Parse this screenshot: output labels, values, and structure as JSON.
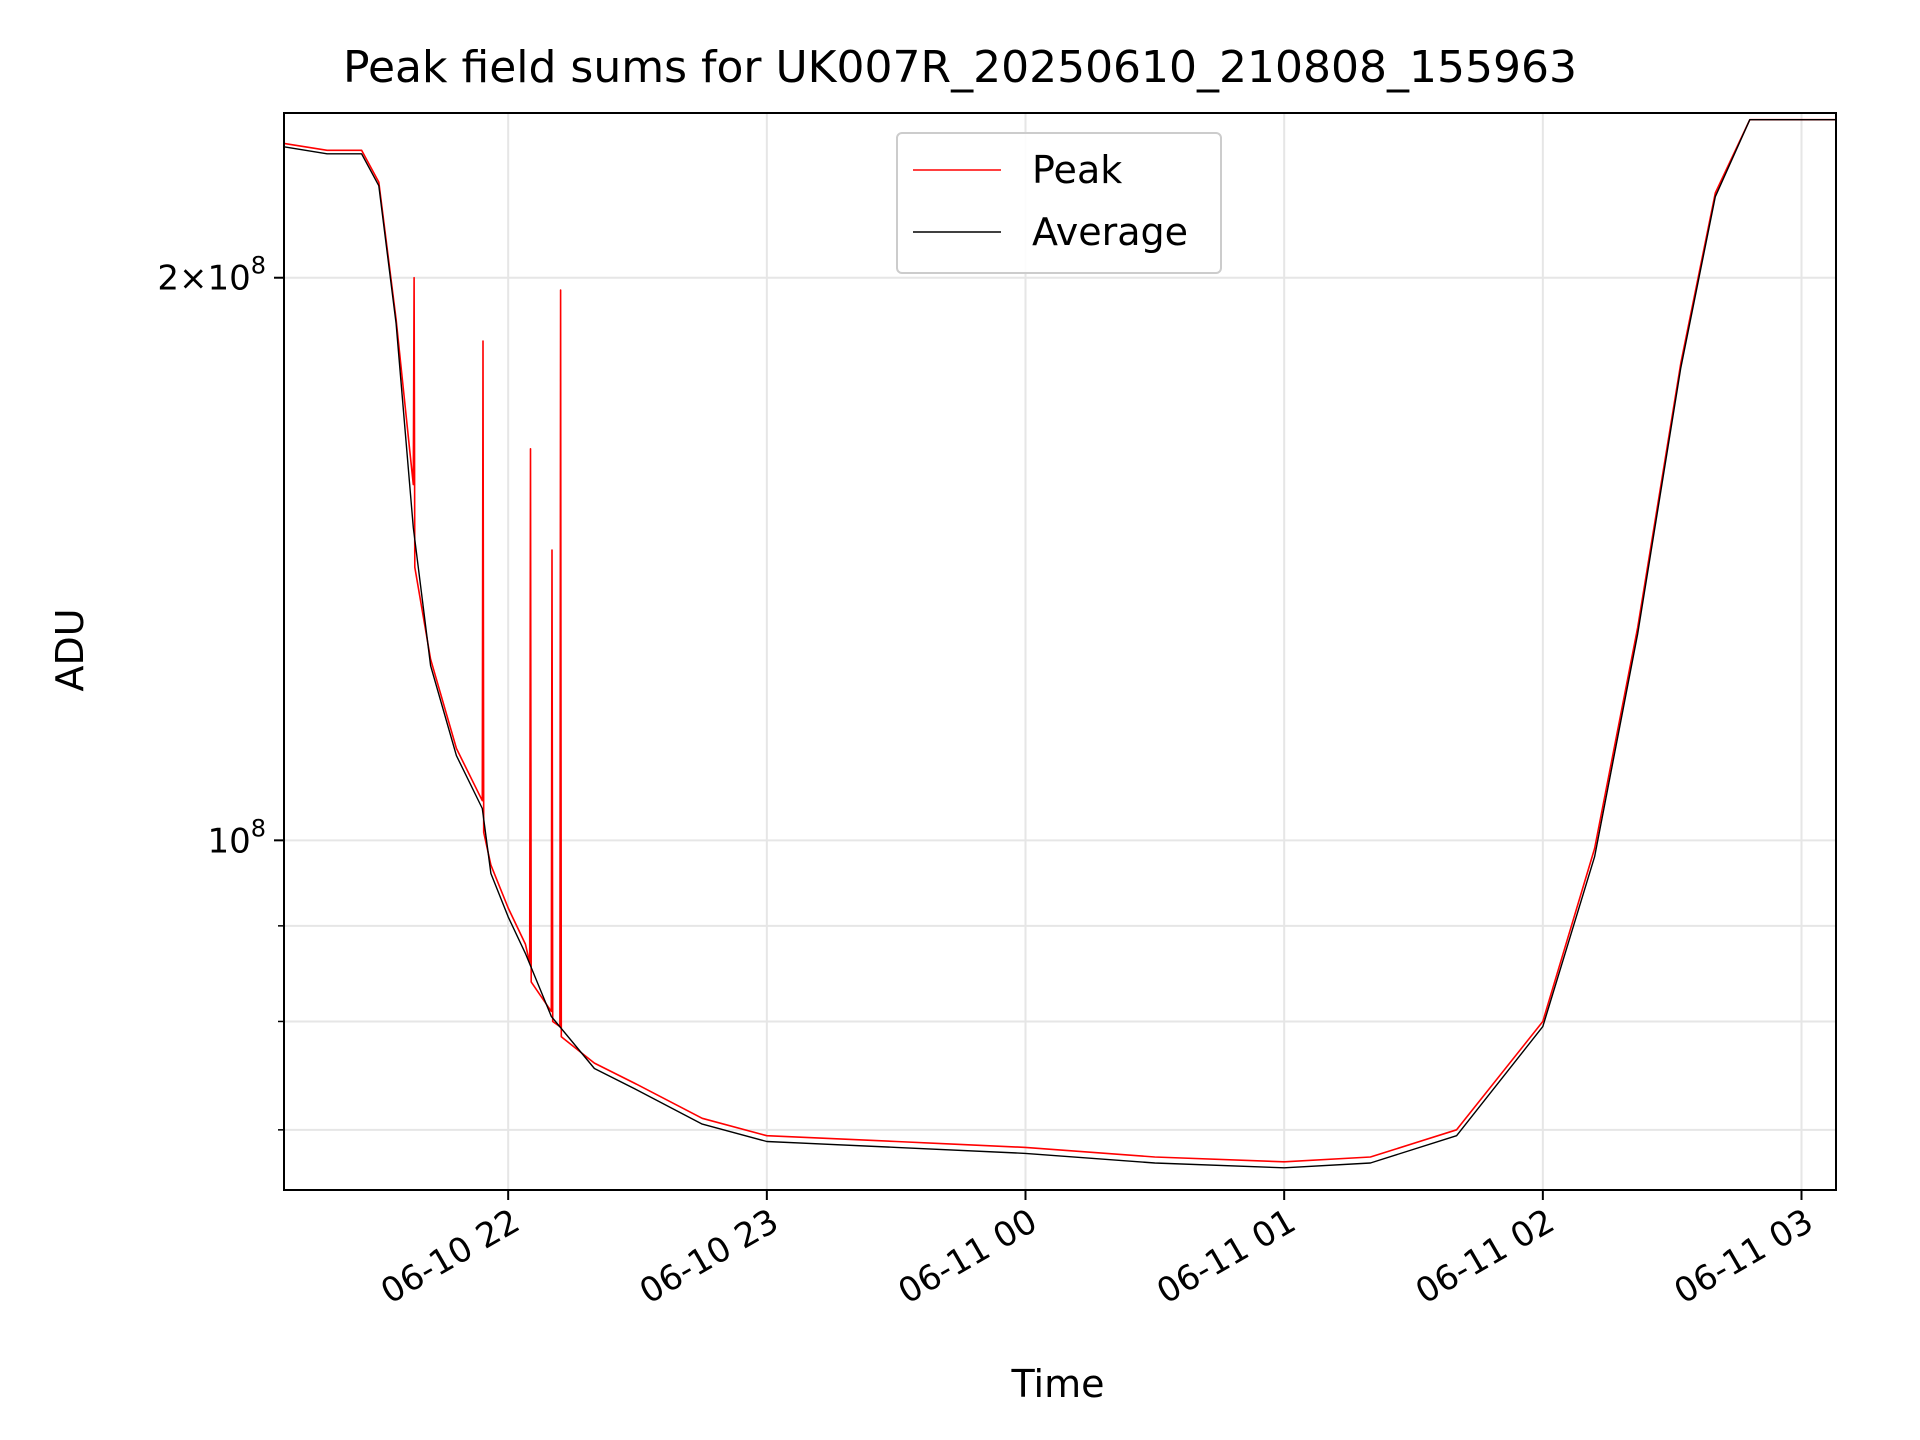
{
  "chart_data": {
    "type": "line",
    "title": "Peak field sums for UK007R_20250610_210808_155963",
    "xlabel": "Time",
    "ylabel": "ADU",
    "x_axis": {
      "type": "datetime",
      "range": [
        "2025-06-10 21:08",
        "2025-06-11 03:08"
      ],
      "ticks": [
        "06-10 22",
        "06-10 23",
        "06-11 00",
        "06-11 01",
        "06-11 02",
        "06-11 03"
      ]
    },
    "y_axis": {
      "scale": "log",
      "range": [
        65000000,
        245000000
      ],
      "major_ticks": [
        {
          "value": 100000000,
          "label": "10^8"
        },
        {
          "value": 200000000,
          "label": "2×10^8"
        }
      ],
      "minor_ticks": [
        70000000,
        80000000,
        90000000
      ]
    },
    "grid": true,
    "legend": {
      "position": "top-center"
    },
    "series": [
      {
        "name": "Peak",
        "color": "#ff0000",
        "points": [
          [
            "2025-06-10 21:08",
            236000000
          ],
          [
            "2025-06-10 21:18",
            234000000
          ],
          [
            "2025-06-10 21:26",
            234000000
          ],
          [
            "2025-06-10 21:30",
            225000000
          ],
          [
            "2025-06-10 21:34",
            190000000
          ],
          [
            "2025-06-10 21:38",
            155000000
          ],
          [
            "2025-06-10 21:38:10",
            200000000
          ],
          [
            "2025-06-10 21:38:20",
            140000000
          ],
          [
            "2025-06-10 21:42",
            125000000
          ],
          [
            "2025-06-10 21:48",
            112000000
          ],
          [
            "2025-06-10 21:54",
            105000000
          ],
          [
            "2025-06-10 21:54:10",
            185000000
          ],
          [
            "2025-06-10 21:54:20",
            101000000
          ],
          [
            "2025-06-10 21:56",
            97000000
          ],
          [
            "2025-06-10 22:00",
            92000000
          ],
          [
            "2025-06-10 22:04",
            88000000
          ],
          [
            "2025-06-10 22:05",
            86000000
          ],
          [
            "2025-06-10 22:05:10",
            162000000
          ],
          [
            "2025-06-10 22:05:20",
            84000000
          ],
          [
            "2025-06-10 22:10",
            81000000
          ],
          [
            "2025-06-10 22:10:10",
            143000000
          ],
          [
            "2025-06-10 22:10:20",
            80000000
          ],
          [
            "2025-06-10 22:12",
            79500000
          ],
          [
            "2025-06-10 22:12:10",
            197000000
          ],
          [
            "2025-06-10 22:12:20",
            78500000
          ],
          [
            "2025-06-10 22:20",
            76000000
          ],
          [
            "2025-06-10 22:30",
            74000000
          ],
          [
            "2025-06-10 22:45",
            71000000
          ],
          [
            "2025-06-10 23:00",
            69500000
          ],
          [
            "2025-06-10 23:30",
            69000000
          ],
          [
            "2025-06-11 00:00",
            68500000
          ],
          [
            "2025-06-11 00:30",
            67700000
          ],
          [
            "2025-06-11 01:00",
            67300000
          ],
          [
            "2025-06-11 01:20",
            67700000
          ],
          [
            "2025-06-11 01:40",
            70000000
          ],
          [
            "2025-06-11 02:00",
            80000000
          ],
          [
            "2025-06-11 02:12",
            99000000
          ],
          [
            "2025-06-11 02:22",
            130000000
          ],
          [
            "2025-06-11 02:32",
            180000000
          ],
          [
            "2025-06-11 02:40",
            222000000
          ],
          [
            "2025-06-11 02:48",
            243000000
          ],
          [
            "2025-06-11 03:08",
            243000000
          ]
        ]
      },
      {
        "name": "Average",
        "color": "#000000",
        "points": [
          [
            "2025-06-10 21:08",
            235000000
          ],
          [
            "2025-06-10 21:18",
            233000000
          ],
          [
            "2025-06-10 21:26",
            233000000
          ],
          [
            "2025-06-10 21:30",
            224000000
          ],
          [
            "2025-06-10 21:34",
            189000000
          ],
          [
            "2025-06-10 21:38",
            147000000
          ],
          [
            "2025-06-10 21:42",
            124000000
          ],
          [
            "2025-06-10 21:48",
            111000000
          ],
          [
            "2025-06-10 21:54",
            104000000
          ],
          [
            "2025-06-10 21:56",
            96000000
          ],
          [
            "2025-06-10 22:00",
            91000000
          ],
          [
            "2025-06-10 22:04",
            87000000
          ],
          [
            "2025-06-10 22:10",
            80500000
          ],
          [
            "2025-06-10 22:20",
            75500000
          ],
          [
            "2025-06-10 22:30",
            73500000
          ],
          [
            "2025-06-10 22:45",
            70500000
          ],
          [
            "2025-06-10 23:00",
            69000000
          ],
          [
            "2025-06-10 23:30",
            68500000
          ],
          [
            "2025-06-11 00:00",
            68000000
          ],
          [
            "2025-06-11 00:30",
            67200000
          ],
          [
            "2025-06-11 01:00",
            66800000
          ],
          [
            "2025-06-11 01:20",
            67200000
          ],
          [
            "2025-06-11 01:40",
            69500000
          ],
          [
            "2025-06-11 02:00",
            79500000
          ],
          [
            "2025-06-11 02:12",
            98000000
          ],
          [
            "2025-06-11 02:22",
            129000000
          ],
          [
            "2025-06-11 02:32",
            179000000
          ],
          [
            "2025-06-11 02:40",
            221000000
          ],
          [
            "2025-06-11 02:48",
            243000000
          ],
          [
            "2025-06-11 03:08",
            243000000
          ]
        ]
      }
    ]
  }
}
